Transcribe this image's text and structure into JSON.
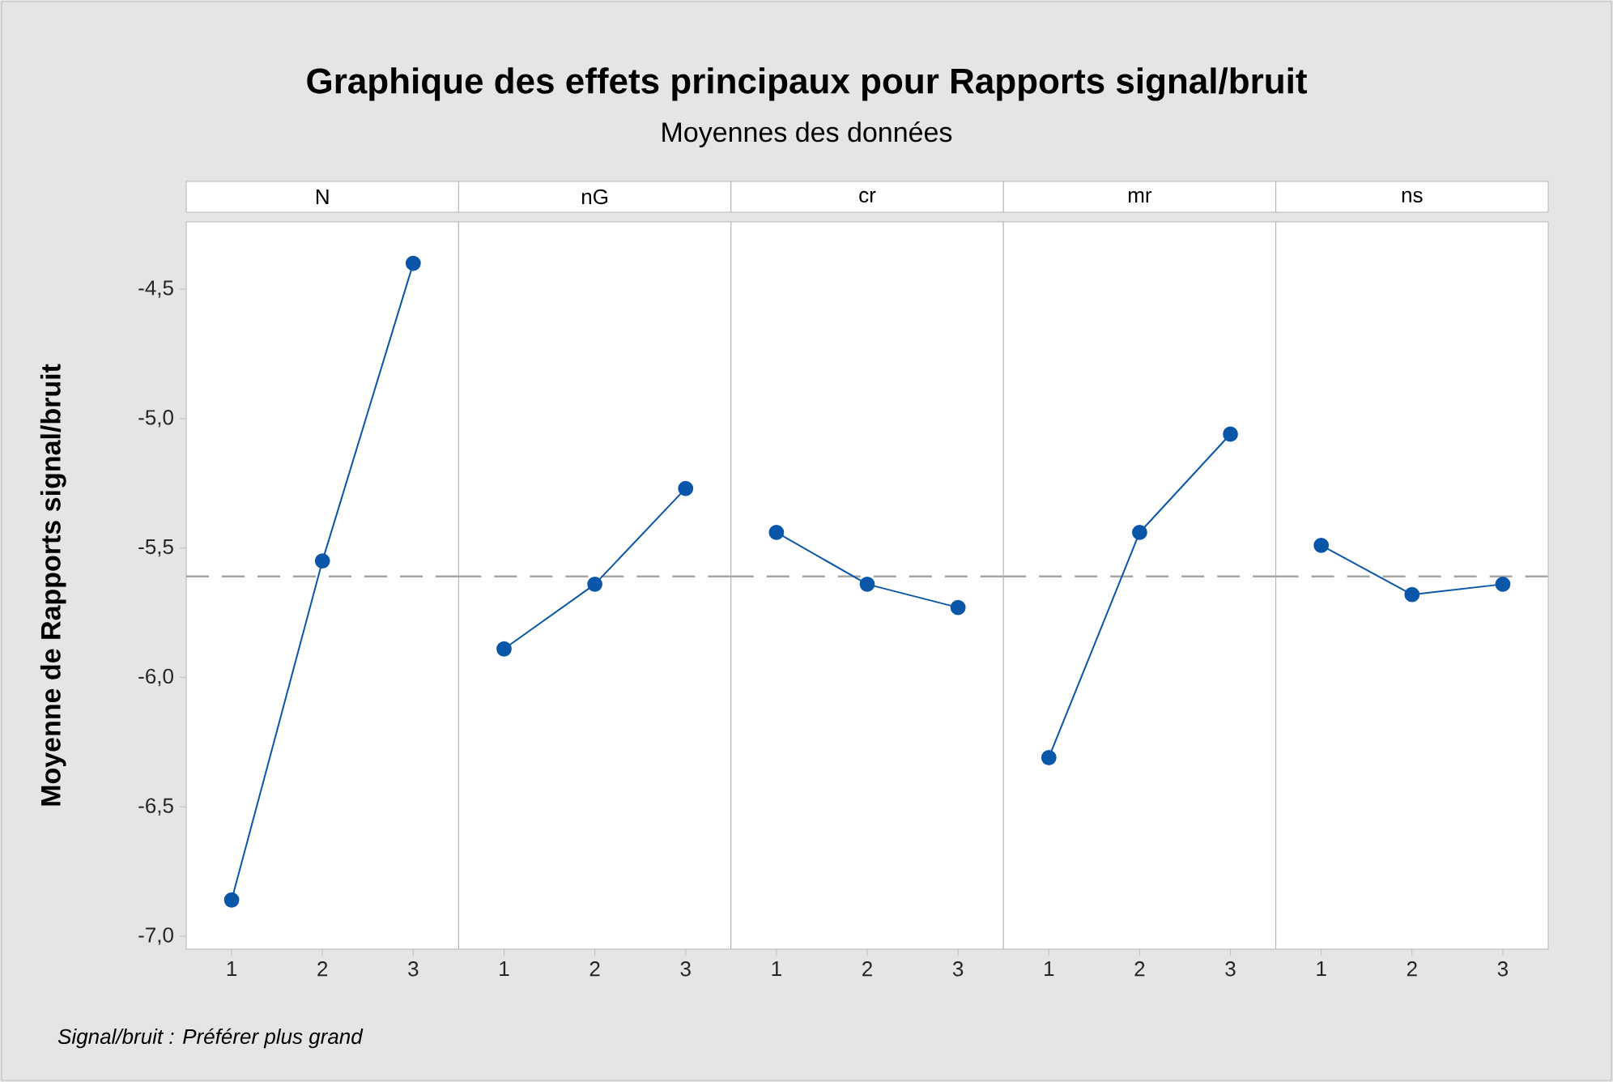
{
  "chart_data": [
    {
      "type": "other",
      "title": "Graphique des effets principaux pour Rapports signal/bruit",
      "subtitle": "Moyennes des données",
      "annotations": [
        "Signal/bruit : Préférer plus grand"
      ]
    },
    {
      "type": "line",
      "title": "N",
      "ylabel": "Moyenne de Rapports signal/bruit",
      "x": [
        1,
        2,
        3
      ],
      "values": [
        -6.86,
        -5.55,
        -4.4
      ],
      "color": "#0a56a8",
      "marker": "circle",
      "line_style": "solid",
      "xlim": [
        0.5,
        3.5
      ],
      "xticks": [
        1,
        2,
        3
      ],
      "ylim": [
        -7.05,
        -4.24
      ],
      "yticks": [
        {
          "value": -7.0,
          "label": "-7,0"
        },
        {
          "value": -6.5,
          "label": "-6,5"
        },
        {
          "value": -6.0,
          "label": "-6,0"
        },
        {
          "value": -5.5,
          "label": "-5,5"
        },
        {
          "value": -5.0,
          "label": "-5,0"
        },
        {
          "value": -4.5,
          "label": "-4,5"
        }
      ],
      "ref_lines": [
        {
          "axis": "y",
          "value": -5.61,
          "color": "#a6a6a6",
          "line_style": "dashed"
        }
      ]
    },
    {
      "type": "line",
      "title": "nG",
      "x": [
        1,
        2,
        3
      ],
      "values": [
        -5.89,
        -5.64,
        -5.27
      ],
      "color": "#0a56a8",
      "marker": "circle",
      "line_style": "solid",
      "xlim": [
        0.5,
        3.5
      ],
      "xticks": [
        1,
        2,
        3
      ],
      "ylim": [
        -7.05,
        -4.24
      ],
      "tick_labels": "x",
      "ref_lines": [
        {
          "axis": "y",
          "value": -5.61,
          "color": "#a6a6a6",
          "line_style": "dashed"
        }
      ]
    },
    {
      "type": "line",
      "title": "cr",
      "x": [
        1,
        2,
        3
      ],
      "values": [
        -5.44,
        -5.64,
        -5.73
      ],
      "color": "#0a56a8",
      "marker": "circle",
      "line_style": "solid",
      "xlim": [
        0.5,
        3.5
      ],
      "xticks": [
        1,
        2,
        3
      ],
      "ylim": [
        -7.05,
        -4.24
      ],
      "tick_labels": "x",
      "ref_lines": [
        {
          "axis": "y",
          "value": -5.61,
          "color": "#a6a6a6",
          "line_style": "dashed"
        }
      ]
    },
    {
      "type": "line",
      "title": "mr",
      "x": [
        1,
        2,
        3
      ],
      "values": [
        -6.31,
        -5.44,
        -5.06
      ],
      "color": "#0a56a8",
      "marker": "circle",
      "line_style": "solid",
      "xlim": [
        0.5,
        3.5
      ],
      "xticks": [
        1,
        2,
        3
      ],
      "ylim": [
        -7.05,
        -4.24
      ],
      "tick_labels": "x",
      "ref_lines": [
        {
          "axis": "y",
          "value": -5.61,
          "color": "#a6a6a6",
          "line_style": "dashed"
        }
      ]
    },
    {
      "type": "line",
      "title": "ns",
      "x": [
        1,
        2,
        3
      ],
      "values": [
        -5.49,
        -5.68,
        -5.64
      ],
      "color": "#0a56a8",
      "marker": "circle",
      "line_style": "solid",
      "xlim": [
        0.5,
        3.5
      ],
      "xticks": [
        1,
        2,
        3
      ],
      "ylim": [
        -7.05,
        -4.24
      ],
      "tick_labels": "x",
      "ref_lines": [
        {
          "axis": "y",
          "value": -5.61,
          "color": "#a6a6a6",
          "line_style": "dashed"
        }
      ]
    }
  ]
}
